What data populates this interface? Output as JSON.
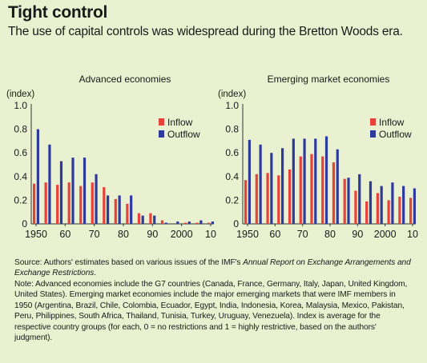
{
  "title": "Tight control",
  "subtitle": "The use of capital controls was widespread during the Bretton Woods era.",
  "source": {
    "prefix": "Source: Authors' estimates based on various issues of the IMF's ",
    "publication": "Annual Report on Exchange Arrangements and Exchange Restrictions",
    "suffix": "."
  },
  "note": "Note: Advanced economies include the G7 countries (Canada, France, Germany, Italy, Japan, United Kingdom, United States). Emerging market economies include the major emerging markets that were IMF members in 1950 (Argentina, Brazil, Chile, Colombia, Ecuador, Egypt, India, Indonesia, Korea, Malaysia, Mexico, Pakistan, Peru, Philippines, South Africa, Thailand, Tunisia, Turkey, Uruguay, Venezuela). Index is average for the respective country groups (for each, 0 = no restrictions and 1 = highly restrictive, based on the authors' judgment).",
  "colors": {
    "inflow": "#e8413a",
    "outflow": "#2e3a9e"
  },
  "chart_data": [
    {
      "type": "bar",
      "title": "Advanced economies",
      "ylabel": "(index)",
      "ylim": [
        0,
        1.0
      ],
      "yticks": [
        "0",
        "0.2",
        "0.4",
        "0.6",
        "0.8",
        "1.0"
      ],
      "xticks": [
        "1950",
        "60",
        "70",
        "80",
        "90",
        "2000",
        "10"
      ],
      "legend_position": "top-right",
      "x": [
        1950,
        1954,
        1958,
        1962,
        1966,
        1970,
        1974,
        1978,
        1982,
        1986,
        1990,
        1994,
        1998,
        2002,
        2006,
        2010
      ],
      "series": [
        {
          "name": "Inflow",
          "values": [
            0.34,
            0.35,
            0.33,
            0.35,
            0.32,
            0.35,
            0.31,
            0.21,
            0.17,
            0.09,
            0.09,
            0.03,
            0.0,
            0.01,
            0.01,
            0.01
          ]
        },
        {
          "name": "Outflow",
          "values": [
            0.8,
            0.67,
            0.53,
            0.56,
            0.56,
            0.42,
            0.24,
            0.24,
            0.24,
            0.07,
            0.07,
            0.01,
            0.02,
            0.02,
            0.03,
            0.02
          ]
        }
      ]
    },
    {
      "type": "bar",
      "title": "Emerging market economies",
      "ylabel": "(index)",
      "ylim": [
        0,
        1.0
      ],
      "yticks": [
        "0",
        "0.2",
        "0.4",
        "0.6",
        "0.8",
        "1.0"
      ],
      "xticks": [
        "1950",
        "60",
        "70",
        "80",
        "90",
        "2000",
        "10"
      ],
      "legend_position": "top-right",
      "x": [
        1950,
        1954,
        1958,
        1962,
        1966,
        1970,
        1974,
        1978,
        1982,
        1986,
        1990,
        1994,
        1998,
        2002,
        2006,
        2010
      ],
      "series": [
        {
          "name": "Inflow",
          "values": [
            0.37,
            0.42,
            0.43,
            0.41,
            0.46,
            0.57,
            0.59,
            0.57,
            0.52,
            0.38,
            0.28,
            0.19,
            0.26,
            0.2,
            0.23,
            0.22
          ]
        },
        {
          "name": "Outflow",
          "values": [
            0.71,
            0.67,
            0.6,
            0.64,
            0.72,
            0.72,
            0.72,
            0.74,
            0.63,
            0.39,
            0.42,
            0.36,
            0.32,
            0.35,
            0.32,
            0.3
          ]
        }
      ]
    }
  ]
}
